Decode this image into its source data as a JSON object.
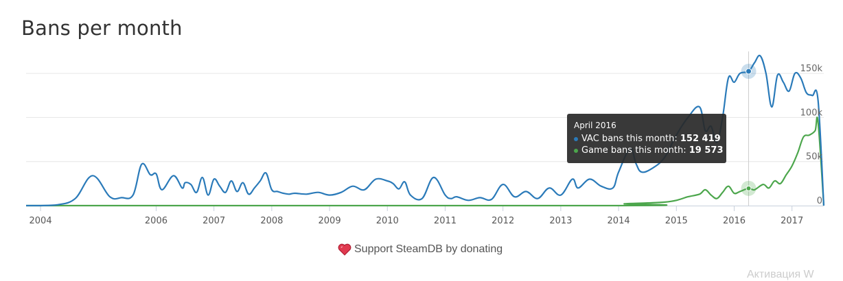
{
  "page": {
    "title": "Bans per month",
    "support_text": "Support SteamDB by donating",
    "watermark_text": "Активация W"
  },
  "tooltip": {
    "title": "April 2016",
    "rows": [
      {
        "label": "VAC bans this month:",
        "value": "152 419",
        "color": "#2a7ab9"
      },
      {
        "label": "Game bans this month:",
        "value": "19 573",
        "color": "#4ca64c"
      }
    ]
  },
  "chart_data": {
    "type": "line",
    "title": "Bans per month",
    "x_tick_labels": [
      "2004",
      "2006",
      "2007",
      "2008",
      "2009",
      "2010",
      "2011",
      "2012",
      "2013",
      "2014",
      "2015",
      "2016",
      "2017"
    ],
    "x_tick_values": [
      2004.0,
      2006.0,
      2007.0,
      2008.0,
      2009.0,
      2010.0,
      2011.0,
      2012.0,
      2013.0,
      2014.0,
      2015.0,
      2016.0,
      2017.0
    ],
    "y_tick_labels": [
      "0",
      "50k",
      "100k",
      "150k"
    ],
    "y_tick_values": [
      0,
      50000,
      100000,
      150000
    ],
    "ylim": [
      0,
      175000
    ],
    "xlim": [
      2003.75,
      2017.55
    ],
    "grid": "horizontal",
    "highlight_x": 2016.25,
    "colors": {
      "vac": "#2a7ab9",
      "game": "#4ca64c",
      "grid": "#e6e6e6",
      "crosshair": "#cccccc"
    },
    "series": [
      {
        "name": "VAC bans this month",
        "x": [
          2003.75,
          2004.0,
          2004.3,
          2004.6,
          2004.9,
          2005.2,
          2005.4,
          2005.6,
          2005.75,
          2005.9,
          2006.0,
          2006.1,
          2006.3,
          2006.45,
          2006.5,
          2006.6,
          2006.7,
          2006.8,
          2006.9,
          2007.0,
          2007.1,
          2007.2,
          2007.3,
          2007.4,
          2007.5,
          2007.6,
          2007.7,
          2007.8,
          2007.9,
          2008.0,
          2008.1,
          2008.2,
          2008.3,
          2008.4,
          2008.6,
          2008.8,
          2009.0,
          2009.2,
          2009.4,
          2009.6,
          2009.8,
          2010.0,
          2010.1,
          2010.2,
          2010.3,
          2010.4,
          2010.6,
          2010.8,
          2011.0,
          2011.1,
          2011.2,
          2011.4,
          2011.6,
          2011.8,
          2012.0,
          2012.2,
          2012.4,
          2012.6,
          2012.8,
          2013.0,
          2013.2,
          2013.3,
          2013.5,
          2013.7,
          2013.9,
          2014.0,
          2014.2,
          2014.3,
          2014.4,
          2014.6,
          2014.8,
          2015.0,
          2015.2,
          2015.4,
          2015.5,
          2015.6,
          2015.7,
          2015.8,
          2015.9,
          2016.0,
          2016.1,
          2016.25,
          2016.35,
          2016.45,
          2016.55,
          2016.65,
          2016.75,
          2016.85,
          2016.95,
          2017.05,
          2017.15,
          2017.25,
          2017.35,
          2017.45,
          2017.55
        ],
        "y": [
          0,
          0,
          1000,
          8000,
          34000,
          10000,
          9000,
          12000,
          47000,
          35000,
          36000,
          18000,
          34000,
          20000,
          26000,
          24000,
          15000,
          32000,
          12000,
          30000,
          22000,
          15000,
          28000,
          16000,
          26000,
          13000,
          20000,
          28000,
          37000,
          18000,
          16000,
          14000,
          13000,
          14000,
          13000,
          15000,
          12000,
          15000,
          22000,
          18000,
          30000,
          28000,
          25000,
          19000,
          27000,
          12000,
          8000,
          32000,
          12000,
          8000,
          10000,
          6000,
          9000,
          7000,
          24000,
          10000,
          16000,
          8000,
          20000,
          12000,
          30000,
          20000,
          30000,
          22000,
          20000,
          38000,
          65000,
          48000,
          38000,
          43000,
          55000,
          80000,
          100000,
          112000,
          85000,
          90000,
          72000,
          100000,
          145000,
          140000,
          150000,
          152419,
          162000,
          170000,
          150000,
          112000,
          148000,
          140000,
          130000,
          150000,
          145000,
          128000,
          125000,
          120000,
          0
        ]
      },
      {
        "name": "Game bans this month",
        "x": [
          2003.75,
          2014.0,
          2014.1,
          2014.5,
          2014.8,
          2015.0,
          2015.2,
          2015.4,
          2015.5,
          2015.6,
          2015.7,
          2015.8,
          2015.9,
          2016.0,
          2016.1,
          2016.25,
          2016.35,
          2016.5,
          2016.6,
          2016.7,
          2016.8,
          2016.9,
          2017.0,
          2017.1,
          2017.2,
          2017.3,
          2017.4,
          2017.45,
          2017.55
        ],
        "y": [
          0,
          0,
          2000,
          3000,
          4000,
          6000,
          10000,
          13000,
          18000,
          12000,
          8000,
          15000,
          22000,
          14000,
          16000,
          19573,
          18000,
          24000,
          20000,
          28000,
          25000,
          35000,
          45000,
          60000,
          78000,
          80000,
          85000,
          95000,
          0
        ]
      }
    ]
  }
}
